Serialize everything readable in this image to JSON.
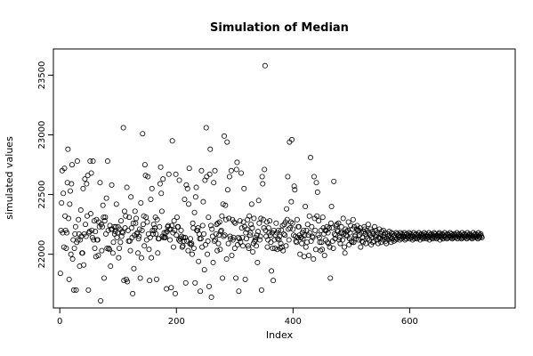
{
  "chart_data": {
    "type": "scatter",
    "title": "Simulation of Median",
    "xlabel": "Index",
    "ylabel": "simulated values",
    "xlim": [
      -11,
      781
    ],
    "ylim": [
      21550,
      23720
    ],
    "x_ticks": [
      0,
      200,
      400,
      600
    ],
    "y_ticks": [
      22000,
      22500,
      23000,
      23500
    ],
    "grid": false,
    "legend": "none",
    "marker": "open-circle",
    "series": [
      {
        "x_start": 1,
        "values": [
          21840,
          22200,
          22430,
          22700,
          22180,
          22510,
          22060,
          22720,
          22320,
          22200,
          22050,
          22180,
          22600,
          22880,
          22300,
          21790,
          22420,
          22530,
          22000,
          22590,
          22750,
          21960,
          22120,
          21700,
          22050,
          22170,
          22230,
          21700,
          22100,
          22780,
          22120,
          22290,
          22170,
          21900,
          22120,
          22370,
          22150,
          22010,
          22010,
          22550,
          21910,
          22170,
          22630,
          22250,
          22150,
          22590,
          22320,
          22660,
          21700,
          22180,
          22190,
          22780,
          22340,
          22680,
          22200,
          22140,
          22780,
          22120,
          22280,
          22050,
          22190,
          21980,
          22290,
          22120,
          22120,
          21990,
          22270,
          22230,
          22600,
          21610,
          22250,
          22030,
          22230,
          22410,
          22310,
          21800,
          22280,
          22310,
          22170,
          22470,
          22050,
          22780,
          22200,
          22050,
          22040,
          22240,
          21900,
          22210,
          22580,
          22210,
          22010,
          22100,
          22230,
          22170,
          22190,
          22230,
          22420,
          22140,
          22180,
          22230,
          21970,
          22050,
          22210,
          22100,
          22280,
          22150,
          22190,
          22180,
          23060,
          21780,
          22360,
          22220,
          22320,
          21790,
          22560,
          21770,
          22200,
          22110,
          22310,
          22110,
          22030,
          22480,
          22220,
          22140,
          21670,
          22260,
          21880,
          22160,
          22360,
          22260,
          22300,
          22170,
          22180,
          22010,
          22130,
          22150,
          22210,
          21800,
          22430,
          21970,
          22200,
          23010,
          22250,
          22320,
          22070,
          22750,
          22660,
          22310,
          22120,
          22270,
          22650,
          22170,
          22040,
          21780,
          22140,
          22460,
          21970,
          22550,
          22200,
          22170,
          22250,
          22200,
          22220,
          22310,
          22170,
          21790,
          22290,
          22010,
          22130,
          22130,
          22230,
          22590,
          22730,
          22510,
          22360,
          22150,
          22630,
          22140,
          22180,
          22140,
          22140,
          22180,
          21710,
          22190,
          22230,
          22240,
          22670,
          22210,
          22120,
          22210,
          21720,
          22240,
          22950,
          22180,
          22060,
          22280,
          22200,
          21670,
          22670,
          22160,
          22310,
          22230,
          22230,
          22120,
          22620,
          22110,
          22130,
          22200,
          22150,
          22060,
          22070,
          22140,
          22110,
          22460,
          22140,
          21760,
          22580,
          22110,
          22550,
          22030,
          22420,
          22720,
          22090,
          22130,
          22080,
          22090,
          22000,
          22260,
          22220,
          22050,
          22350,
          21760,
          22480,
          22560,
          22200,
          22200,
          22220,
          21940,
          22170,
          22130,
          21690,
          22130,
          22700,
          22060,
          22240,
          22440,
          22170,
          21870,
          22620,
          22080,
          23060,
          22650,
          22000,
          22110,
          22310,
          21730,
          22670,
          22880,
          22240,
          21640,
          22210,
          22150,
          21930,
          22600,
          22110,
          22700,
          22120,
          22170,
          22250,
          22030,
          22260,
          22090,
          22160,
          22270,
          22040,
          22190,
          22200,
          22320,
          21800,
          22420,
          22150,
          22990,
          22160,
          22410,
          22290,
          21960,
          22940,
          22540,
          22090,
          22300,
          22650,
          22150,
          22130,
          22700,
          21990,
          22290,
          22120,
          22140,
          22270,
          22050,
          22260,
          21800,
          22710,
          22770,
          22080,
          22140,
          21690,
          22130,
          22280,
          22100,
          22680,
          22220,
          22140,
          22070,
          22270,
          22550,
          22230,
          21790,
          22180,
          22130,
          22210,
          22290,
          22070,
          22050,
          22320,
          22160,
          22180,
          22250,
          22420,
          22220,
          22020,
          22090,
          22300,
          22110,
          22140,
          22120,
          22070,
          22160,
          21930,
          22190,
          22450,
          22260,
          22120,
          22150,
          22300,
          21700,
          22650,
          22590,
          22290,
          22220,
          22710,
          23580,
          22200,
          22150,
          22270,
          22060,
          22120,
          22220,
          22180,
          22280,
          22160,
          22100,
          21860,
          22180,
          22050,
          21780,
          22200,
          22120,
          22050,
          22160,
          22260,
          22180,
          22040,
          22130,
          22200,
          22120,
          22150,
          22050,
          22090,
          22200,
          22060,
          22240,
          22030,
          22170,
          22250,
          22160,
          22270,
          22070,
          22380,
          22290,
          22650,
          22210,
          22120,
          22940,
          22220,
          22270,
          22440,
          22960,
          22260,
          22210,
          22160,
          22570,
          22540,
          22150,
          22110,
          22100,
          22290,
          22140,
          22230,
          22230,
          22160,
          22000,
          22140,
          22140,
          22090,
          22180,
          22130,
          22200,
          21980,
          22160,
          22400,
          22060,
          22200,
          22100,
          22250,
          22160,
          21990,
          22320,
          22180,
          22810,
          22110,
          22230,
          22150,
          22140,
          21960,
          22650,
          22300,
          22200,
          22040,
          22600,
          22320,
          22520,
          22160,
          22280,
          22140,
          22100,
          22030,
          22200,
          22100,
          22040,
          22310,
          22220,
          22170,
          21990,
          22200,
          22120,
          22200,
          22230,
          22100,
          22180,
          22090,
          22220,
          22060,
          21800,
          22260,
          22400,
          22220,
          22110,
          22050,
          22610,
          22170,
          22130,
          22160,
          22240,
          22250,
          22200,
          22190,
          22260,
          22120,
          22140,
          22090,
          22180,
          22230,
          22180,
          22120,
          22300,
          22170,
          22060,
          22010,
          22210,
          22160,
          22190,
          22150,
          22200,
          22270,
          22080,
          22130,
          22180,
          22240,
          22110,
          22100,
          22210,
          22290,
          22100,
          22230,
          22150,
          22160,
          22130,
          22210,
          22240,
          22200,
          22120,
          22200,
          22160,
          22220,
          22060,
          22180,
          22110,
          22140,
          22100,
          22190,
          22230,
          22210,
          22170,
          22090,
          22150,
          22200,
          22130,
          22250,
          22180,
          22120,
          22160,
          22210,
          22080,
          22140,
          22190,
          22100,
          22170,
          22110,
          22230,
          22150,
          22200,
          22160,
          22120,
          22180,
          22090,
          22140,
          22210,
          22130,
          22170,
          22100,
          22190,
          22150,
          22120,
          22200,
          22160,
          22140,
          22180,
          22110,
          22090,
          22130,
          22170,
          22150,
          22120,
          22190,
          22160,
          22140,
          22100,
          22180,
          22130,
          22170,
          22150,
          22110,
          22160,
          22140,
          22120,
          22180,
          22130,
          22170,
          22150,
          22160,
          22140,
          22120,
          22180,
          22150,
          22130,
          22170,
          22160,
          22140,
          22150,
          22180,
          22120,
          22160,
          22130,
          22170,
          22150,
          22140,
          22160,
          22180,
          22130,
          22150,
          22170,
          22140,
          22160,
          22120,
          22150,
          22180,
          22130,
          22160,
          22140,
          22170,
          22150,
          22130,
          22160,
          22140,
          22180,
          22150,
          22120,
          22160,
          22170,
          22140,
          22150,
          22130,
          22160,
          22180,
          22140,
          22150,
          22170,
          22130,
          22160,
          22150,
          22140,
          22180,
          22120,
          22160,
          22150,
          22170,
          22140,
          22130,
          22160,
          22150,
          22180,
          22140,
          22170,
          22150,
          22130,
          22160,
          22140,
          22150,
          22170,
          22180,
          22120,
          22160,
          22150,
          22140,
          22170,
          22130,
          22160,
          22150,
          22180,
          22140,
          22160,
          22150,
          22130,
          22170,
          22140,
          22160,
          22150,
          22180,
          22140,
          22150,
          22170,
          22130,
          22160,
          22140,
          22150,
          22170,
          22160,
          22140,
          22150,
          22180,
          22130,
          22160,
          22150,
          22170,
          22140,
          22160,
          22150,
          22130,
          22180,
          22140,
          22160,
          22150,
          22170,
          22140,
          22150,
          22160,
          22130,
          22180,
          22150,
          22140,
          22160,
          22170,
          22150,
          22140,
          22160,
          22130,
          22150,
          22180,
          22140,
          22160,
          22150,
          22170,
          22140,
          22150,
          22160,
          22130,
          22180,
          22150,
          22140,
          22160,
          22170,
          22150,
          22140
        ]
      }
    ]
  }
}
